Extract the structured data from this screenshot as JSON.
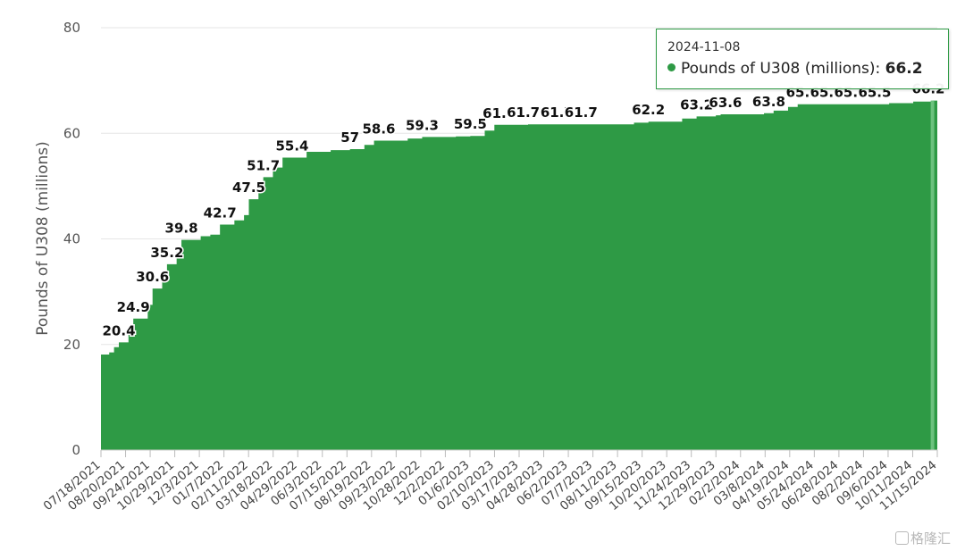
{
  "chart_data": {
    "type": "area",
    "ylabel": "Pounds of U308 (millions)",
    "ylim": [
      0,
      80
    ],
    "yticks": [
      0,
      20,
      40,
      60,
      80
    ],
    "grid": true,
    "color": "#2e9a45",
    "xlim": [
      "2021-07-18",
      "2024-11-15"
    ],
    "x_tick_labels": [
      "07/18/2021",
      "08/20/2021",
      "09/24/2021",
      "10/29/2021",
      "12/3/2021",
      "01/7/2022",
      "02/11/2022",
      "03/18/2022",
      "04/29/2022",
      "06/3/2022",
      "07/15/2022",
      "08/19/2022",
      "09/23/2022",
      "10/28/2022",
      "12/2/2022",
      "01/6/2023",
      "02/10/2023",
      "03/17/2023",
      "04/28/2023",
      "06/2/2023",
      "07/7/2023",
      "08/11/2023",
      "09/15/2023",
      "10/20/2023",
      "11/24/2023",
      "12/29/2023",
      "02/2/2024",
      "03/8/2024",
      "04/19/2024",
      "05/24/2024",
      "06/28/2024",
      "08/2/2024",
      "09/6/2024",
      "10/11/2024",
      "11/15/2024"
    ],
    "series": [
      {
        "name": "Pounds of U308 (millions)",
        "points": [
          [
            "2021-07-18",
            18.1
          ],
          [
            "2021-07-30",
            18.5
          ],
          [
            "2021-08-06",
            19.5
          ],
          [
            "2021-08-13",
            20.4
          ],
          [
            "2021-08-27",
            22.0
          ],
          [
            "2021-09-03",
            24.9
          ],
          [
            "2021-09-24",
            27.5
          ],
          [
            "2021-10-01",
            30.6
          ],
          [
            "2021-10-15",
            33.0
          ],
          [
            "2021-10-22",
            35.2
          ],
          [
            "2021-11-05",
            37.5
          ],
          [
            "2021-11-12",
            39.8
          ],
          [
            "2021-12-10",
            40.5
          ],
          [
            "2021-12-24",
            40.8
          ],
          [
            "2022-01-07",
            42.7
          ],
          [
            "2022-01-28",
            43.5
          ],
          [
            "2022-02-11",
            44.5
          ],
          [
            "2022-02-18",
            47.5
          ],
          [
            "2022-03-04",
            49.5
          ],
          [
            "2022-03-11",
            51.7
          ],
          [
            "2022-03-25",
            53.5
          ],
          [
            "2022-04-08",
            55.4
          ],
          [
            "2022-05-06",
            55.4
          ],
          [
            "2022-05-13",
            56.5
          ],
          [
            "2022-06-17",
            56.8
          ],
          [
            "2022-07-15",
            57.0
          ],
          [
            "2022-08-05",
            57.8
          ],
          [
            "2022-08-19",
            58.6
          ],
          [
            "2022-10-07",
            59.0
          ],
          [
            "2022-10-28",
            59.3
          ],
          [
            "2022-12-16",
            59.4
          ],
          [
            "2023-01-06",
            59.5
          ],
          [
            "2023-01-27",
            60.5
          ],
          [
            "2023-02-10",
            61.6
          ],
          [
            "2023-03-31",
            61.7
          ],
          [
            "2023-04-28",
            61.7
          ],
          [
            "2023-06-23",
            61.7
          ],
          [
            "2023-07-28",
            61.7
          ],
          [
            "2023-09-01",
            62.0
          ],
          [
            "2023-09-22",
            62.2
          ],
          [
            "2023-11-10",
            62.8
          ],
          [
            "2023-12-01",
            63.2
          ],
          [
            "2023-12-29",
            63.4
          ],
          [
            "2024-01-05",
            63.6
          ],
          [
            "2024-03-08",
            63.8
          ],
          [
            "2024-03-22",
            64.3
          ],
          [
            "2024-04-12",
            65.0
          ],
          [
            "2024-04-26",
            65.5
          ],
          [
            "2024-05-31",
            65.5
          ],
          [
            "2024-06-28",
            65.5
          ],
          [
            "2024-08-02",
            65.5
          ],
          [
            "2024-09-06",
            65.7
          ],
          [
            "2024-10-11",
            66.0
          ],
          [
            "2024-11-08",
            66.2
          ],
          [
            "2024-11-15",
            66.2
          ]
        ]
      }
    ],
    "data_labels": [
      {
        "x": "2021-08-13",
        "label": "20.4",
        "value": 20.4
      },
      {
        "x": "2021-09-03",
        "label": "24.9",
        "value": 24.9
      },
      {
        "x": "2021-10-01",
        "label": "30.6",
        "value": 30.6
      },
      {
        "x": "2021-10-22",
        "label": "35.2",
        "value": 35.2
      },
      {
        "x": "2021-11-12",
        "label": "39.8",
        "value": 39.8
      },
      {
        "x": "2022-01-07",
        "label": "42.7",
        "value": 42.7
      },
      {
        "x": "2022-02-18",
        "label": "47.5",
        "value": 47.5
      },
      {
        "x": "2022-03-11",
        "label": "51.7",
        "value": 51.7
      },
      {
        "x": "2022-04-22",
        "label": "55.4",
        "value": 55.4
      },
      {
        "x": "2022-07-15",
        "label": "57",
        "value": 57.0
      },
      {
        "x": "2022-08-26",
        "label": "58.6",
        "value": 58.6
      },
      {
        "x": "2022-10-28",
        "label": "59.3",
        "value": 59.3
      },
      {
        "x": "2023-01-06",
        "label": "59.5",
        "value": 59.5
      },
      {
        "x": "2023-02-17",
        "label": "61.6",
        "value": 61.6
      },
      {
        "x": "2023-03-24",
        "label": "61.7",
        "value": 61.7
      },
      {
        "x": "2023-05-12",
        "label": "61.7",
        "value": 61.7
      },
      {
        "x": "2023-06-16",
        "label": "61.7",
        "value": 61.7
      },
      {
        "x": "2023-09-22",
        "label": "62.2",
        "value": 62.2
      },
      {
        "x": "2023-12-01",
        "label": "63.2",
        "value": 63.2
      },
      {
        "x": "2024-01-12",
        "label": "63.6",
        "value": 63.6
      },
      {
        "x": "2024-03-15",
        "label": "63.8",
        "value": 63.8
      },
      {
        "x": "2024-05-03",
        "label": "65.5",
        "value": 65.5
      },
      {
        "x": "2024-06-07",
        "label": "65.5",
        "value": 65.5
      },
      {
        "x": "2024-07-12",
        "label": "65.5",
        "value": 65.5
      },
      {
        "x": "2024-08-16",
        "label": "65.5",
        "value": 65.5
      },
      {
        "x": "2024-11-02",
        "label": "66.2",
        "value": 66.2
      }
    ],
    "highlight": {
      "x": "2024-11-08",
      "value": 66.2
    }
  },
  "tooltip": {
    "date": "2024-11-08",
    "series_label": "Pounds of U308 (millions):",
    "value": "66.2"
  },
  "watermark": "格隆汇"
}
